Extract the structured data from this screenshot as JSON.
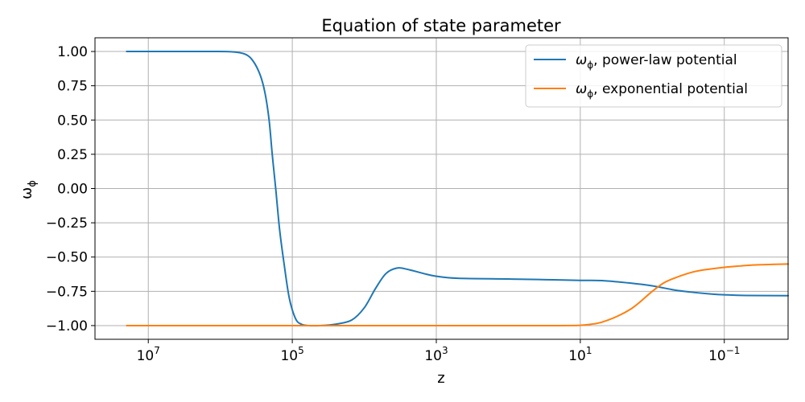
{
  "chart_data": {
    "type": "line",
    "title": "Equation of state parameter",
    "xlabel": "z",
    "ylabel_main": "ω",
    "ylabel_sub": "ϕ",
    "x_scale": "log",
    "x_reversed": true,
    "xlim": [
      55000000,
      0.013
    ],
    "ylim": [
      -1.1,
      1.1
    ],
    "grid": true,
    "legend_position": "top-right",
    "x_ticks": [
      {
        "value": 10000000,
        "base": "10",
        "exp": "7"
      },
      {
        "value": 100000,
        "base": "10",
        "exp": "5"
      },
      {
        "value": 1000,
        "base": "10",
        "exp": "3"
      },
      {
        "value": 10,
        "base": "10",
        "exp": "1"
      },
      {
        "value": 0.1,
        "base": "10",
        "exp": "−1"
      }
    ],
    "y_ticks": [
      {
        "value": 1.0,
        "label": "1.00"
      },
      {
        "value": 0.75,
        "label": "0.75"
      },
      {
        "value": 0.5,
        "label": "0.50"
      },
      {
        "value": 0.25,
        "label": "0.25"
      },
      {
        "value": 0.0,
        "label": "0.00"
      },
      {
        "value": -0.25,
        "label": "−0.25"
      },
      {
        "value": -0.5,
        "label": "−0.50"
      },
      {
        "value": -0.75,
        "label": "−0.75"
      },
      {
        "value": -1.0,
        "label": "−1.00"
      }
    ],
    "series": [
      {
        "name_sym": "ω",
        "name_sub": "ϕ",
        "name_rest": ", power-law potential",
        "color": "#1f77b4",
        "x": [
          20000000,
          5000000,
          1500000,
          700000,
          450000,
          350000,
          280000,
          240000,
          210000,
          190000,
          170000,
          150000,
          130000,
          110000,
          90000,
          75000,
          60000,
          40000,
          25000,
          15000,
          10000,
          7000,
          5000,
          3500,
          2500,
          1500,
          1000,
          500,
          100,
          30,
          10,
          5,
          2,
          1,
          0.5,
          0.3,
          0.15,
          0.1,
          0.05,
          0.013
        ],
        "y": [
          1.0,
          1.0,
          1.0,
          0.998,
          0.98,
          0.93,
          0.83,
          0.7,
          0.5,
          0.25,
          0.0,
          -0.3,
          -0.55,
          -0.8,
          -0.95,
          -0.99,
          -1.0,
          -1.0,
          -0.99,
          -0.96,
          -0.87,
          -0.73,
          -0.62,
          -0.58,
          -0.59,
          -0.62,
          -0.64,
          -0.655,
          -0.66,
          -0.665,
          -0.67,
          -0.672,
          -0.69,
          -0.71,
          -0.74,
          -0.755,
          -0.77,
          -0.775,
          -0.78,
          -0.782
        ]
      },
      {
        "name_sym": "ω",
        "name_sub": "ϕ",
        "name_rest": ", exponential potential",
        "color": "#ff7f0e",
        "x": [
          20000000,
          100000,
          1000,
          20,
          10,
          7,
          5,
          3,
          2,
          1.5,
          1,
          0.7,
          0.5,
          0.3,
          0.2,
          0.1,
          0.06,
          0.04,
          0.02,
          0.013
        ],
        "y": [
          -1.0,
          -1.0,
          -1.0,
          -1.0,
          -0.998,
          -0.99,
          -0.975,
          -0.93,
          -0.88,
          -0.83,
          -0.75,
          -0.69,
          -0.655,
          -0.615,
          -0.595,
          -0.575,
          -0.565,
          -0.558,
          -0.553,
          -0.551
        ]
      }
    ]
  }
}
